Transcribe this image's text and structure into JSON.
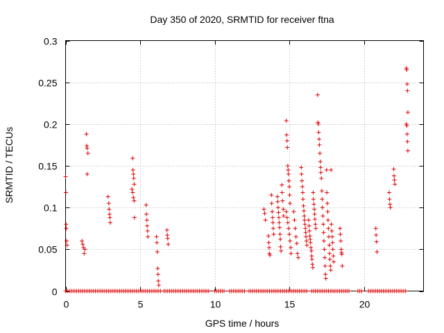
{
  "chart_data": {
    "type": "scatter",
    "title": "Day 350 of 2020, SRMTID for receiver ftna",
    "xlabel": "GPS time / hours",
    "ylabel": "SRMTID / TECUs",
    "xlim": [
      0,
      24
    ],
    "ylim": [
      0,
      0.3
    ],
    "xticks": [
      0,
      5,
      10,
      15,
      20
    ],
    "xtick_labels": [
      "0",
      "5",
      "10",
      "15",
      "20"
    ],
    "yticks": [
      0,
      0.05,
      0.1,
      0.15,
      0.2,
      0.25,
      0.3
    ],
    "ytick_labels": [
      "0",
      "0.05",
      "0.1",
      "0.15",
      "0.2",
      "0.25",
      "0.3"
    ],
    "grid": true,
    "marker": "plus",
    "color": "#dd0000",
    "series": [
      {
        "name": "SRMTID",
        "points": [
          [
            0.0,
            0.137
          ],
          [
            0.02,
            0.118
          ],
          [
            0.03,
            0.08
          ],
          [
            0.05,
            0.075
          ],
          [
            0.07,
            0.06
          ],
          [
            0.1,
            0.055
          ],
          [
            1.1,
            0.06
          ],
          [
            1.15,
            0.056
          ],
          [
            1.2,
            0.052
          ],
          [
            1.25,
            0.045
          ],
          [
            1.3,
            0.05
          ],
          [
            1.4,
            0.188
          ],
          [
            1.42,
            0.174
          ],
          [
            1.45,
            0.171
          ],
          [
            1.5,
            0.165
          ],
          [
            1.45,
            0.14
          ],
          [
            2.85,
            0.113
          ],
          [
            2.9,
            0.105
          ],
          [
            2.92,
            0.098
          ],
          [
            2.95,
            0.092
          ],
          [
            2.97,
            0.088
          ],
          [
            3.0,
            0.082
          ],
          [
            4.5,
            0.159
          ],
          [
            4.52,
            0.145
          ],
          [
            4.55,
            0.14
          ],
          [
            4.57,
            0.135
          ],
          [
            4.6,
            0.128
          ],
          [
            4.45,
            0.122
          ],
          [
            4.5,
            0.118
          ],
          [
            4.55,
            0.112
          ],
          [
            4.6,
            0.108
          ],
          [
            4.62,
            0.088
          ],
          [
            5.4,
            0.103
          ],
          [
            5.42,
            0.092
          ],
          [
            5.45,
            0.085
          ],
          [
            5.47,
            0.078
          ],
          [
            5.5,
            0.072
          ],
          [
            5.52,
            0.065
          ],
          [
            6.1,
            0.065
          ],
          [
            6.12,
            0.058
          ],
          [
            6.15,
            0.047
          ],
          [
            6.18,
            0.027
          ],
          [
            6.2,
            0.02
          ],
          [
            6.22,
            0.012
          ],
          [
            6.25,
            0.007
          ],
          [
            6.8,
            0.073
          ],
          [
            6.82,
            0.067
          ],
          [
            6.85,
            0.063
          ],
          [
            6.88,
            0.056
          ],
          [
            13.3,
            0.098
          ],
          [
            13.35,
            0.093
          ],
          [
            13.4,
            0.085
          ],
          [
            13.6,
            0.066
          ],
          [
            13.62,
            0.058
          ],
          [
            13.65,
            0.052
          ],
          [
            13.67,
            0.045
          ],
          [
            13.7,
            0.043
          ],
          [
            13.8,
            0.115
          ],
          [
            13.82,
            0.105
          ],
          [
            13.85,
            0.095
          ],
          [
            13.88,
            0.088
          ],
          [
            13.9,
            0.082
          ],
          [
            13.92,
            0.075
          ],
          [
            13.95,
            0.068
          ],
          [
            14.2,
            0.113
          ],
          [
            14.22,
            0.107
          ],
          [
            14.25,
            0.1
          ],
          [
            14.28,
            0.094
          ],
          [
            14.3,
            0.088
          ],
          [
            14.32,
            0.082
          ],
          [
            14.35,
            0.076
          ],
          [
            14.38,
            0.068
          ],
          [
            14.4,
            0.062
          ],
          [
            14.42,
            0.053
          ],
          [
            14.45,
            0.048
          ],
          [
            14.5,
            0.127
          ],
          [
            14.52,
            0.118
          ],
          [
            14.55,
            0.108
          ],
          [
            14.6,
            0.098
          ],
          [
            14.62,
            0.09
          ],
          [
            14.8,
            0.204
          ],
          [
            14.82,
            0.187
          ],
          [
            14.85,
            0.18
          ],
          [
            14.87,
            0.172
          ],
          [
            14.9,
            0.15
          ],
          [
            14.92,
            0.145
          ],
          [
            14.95,
            0.14
          ],
          [
            14.97,
            0.132
          ],
          [
            15.0,
            0.125
          ],
          [
            15.02,
            0.115
          ],
          [
            15.05,
            0.105
          ],
          [
            14.8,
            0.095
          ],
          [
            14.85,
            0.088
          ],
          [
            14.9,
            0.082
          ],
          [
            14.95,
            0.075
          ],
          [
            15.0,
            0.068
          ],
          [
            15.05,
            0.06
          ],
          [
            15.1,
            0.052
          ],
          [
            15.12,
            0.045
          ],
          [
            15.3,
            0.095
          ],
          [
            15.35,
            0.085
          ],
          [
            15.4,
            0.075
          ],
          [
            15.45,
            0.065
          ],
          [
            15.5,
            0.057
          ],
          [
            15.55,
            0.045
          ],
          [
            15.6,
            0.04
          ],
          [
            15.8,
            0.148
          ],
          [
            15.82,
            0.14
          ],
          [
            15.85,
            0.132
          ],
          [
            15.88,
            0.125
          ],
          [
            15.9,
            0.118
          ],
          [
            15.92,
            0.11
          ],
          [
            15.95,
            0.102
          ],
          [
            15.98,
            0.096
          ],
          [
            16.0,
            0.09
          ],
          [
            16.02,
            0.085
          ],
          [
            16.05,
            0.08
          ],
          [
            16.08,
            0.075
          ],
          [
            16.1,
            0.07
          ],
          [
            16.12,
            0.065
          ],
          [
            16.15,
            0.06
          ],
          [
            16.18,
            0.055
          ],
          [
            16.3,
            0.085
          ],
          [
            16.32,
            0.078
          ],
          [
            16.35,
            0.072
          ],
          [
            16.38,
            0.066
          ],
          [
            16.4,
            0.062
          ],
          [
            16.42,
            0.058
          ],
          [
            16.45,
            0.052
          ],
          [
            16.48,
            0.048
          ],
          [
            16.5,
            0.042
          ],
          [
            16.52,
            0.038
          ],
          [
            16.55,
            0.032
          ],
          [
            16.58,
            0.028
          ],
          [
            16.6,
            0.118
          ],
          [
            16.62,
            0.11
          ],
          [
            16.65,
            0.104
          ],
          [
            16.68,
            0.098
          ],
          [
            16.7,
            0.092
          ],
          [
            16.72,
            0.086
          ],
          [
            16.75,
            0.08
          ],
          [
            16.78,
            0.075
          ],
          [
            16.9,
            0.235
          ],
          [
            16.92,
            0.202
          ],
          [
            16.95,
            0.2
          ],
          [
            16.97,
            0.19
          ],
          [
            17.0,
            0.182
          ],
          [
            17.02,
            0.175
          ],
          [
            17.05,
            0.165
          ],
          [
            17.08,
            0.155
          ],
          [
            17.1,
            0.148
          ],
          [
            17.12,
            0.142
          ],
          [
            17.15,
            0.135
          ],
          [
            17.18,
            0.12
          ],
          [
            17.2,
            0.11
          ],
          [
            17.22,
            0.1
          ],
          [
            17.25,
            0.09
          ],
          [
            17.28,
            0.08
          ],
          [
            17.3,
            0.07
          ],
          [
            17.32,
            0.06
          ],
          [
            17.35,
            0.05
          ],
          [
            17.38,
            0.04
          ],
          [
            17.4,
            0.03
          ],
          [
            17.42,
            0.02
          ],
          [
            17.45,
            0.015
          ],
          [
            17.5,
            0.145
          ],
          [
            17.52,
            0.118
          ],
          [
            17.55,
            0.105
          ],
          [
            17.58,
            0.095
          ],
          [
            17.6,
            0.085
          ],
          [
            17.62,
            0.075
          ],
          [
            17.65,
            0.065
          ],
          [
            17.68,
            0.055
          ],
          [
            17.7,
            0.045
          ],
          [
            17.72,
            0.038
          ],
          [
            17.75,
            0.03
          ],
          [
            17.78,
            0.025
          ],
          [
            17.8,
            0.145
          ],
          [
            17.82,
            0.08
          ],
          [
            17.85,
            0.072
          ],
          [
            17.88,
            0.065
          ],
          [
            17.9,
            0.058
          ],
          [
            17.92,
            0.05
          ],
          [
            17.95,
            0.042
          ],
          [
            17.98,
            0.035
          ],
          [
            18.4,
            0.075
          ],
          [
            18.42,
            0.068
          ],
          [
            18.45,
            0.06
          ],
          [
            18.48,
            0.05
          ],
          [
            18.5,
            0.046
          ],
          [
            18.52,
            0.044
          ],
          [
            18.55,
            0.03
          ],
          [
            20.8,
            0.075
          ],
          [
            20.82,
            0.067
          ],
          [
            20.85,
            0.059
          ],
          [
            20.88,
            0.047
          ],
          [
            21.7,
            0.118
          ],
          [
            21.72,
            0.11
          ],
          [
            21.75,
            0.104
          ],
          [
            21.78,
            0.1
          ],
          [
            22.0,
            0.146
          ],
          [
            22.02,
            0.138
          ],
          [
            22.05,
            0.133
          ],
          [
            22.08,
            0.128
          ],
          [
            22.85,
            0.267
          ],
          [
            22.87,
            0.265
          ],
          [
            22.9,
            0.248
          ],
          [
            22.92,
            0.24
          ],
          [
            22.95,
            0.214
          ],
          [
            22.85,
            0.2
          ],
          [
            22.88,
            0.198
          ],
          [
            22.9,
            0.188
          ],
          [
            22.92,
            0.179
          ],
          [
            22.95,
            0.168
          ]
        ],
        "zero_ranges": [
          [
            0.0,
            6.4
          ],
          [
            6.6,
            9.7
          ],
          [
            10.0,
            10.7
          ],
          [
            11.0,
            12.1
          ],
          [
            12.3,
            16.2
          ],
          [
            16.5,
            19.0
          ],
          [
            19.6,
            19.9
          ],
          [
            20.3,
            22.8
          ]
        ]
      }
    ]
  }
}
